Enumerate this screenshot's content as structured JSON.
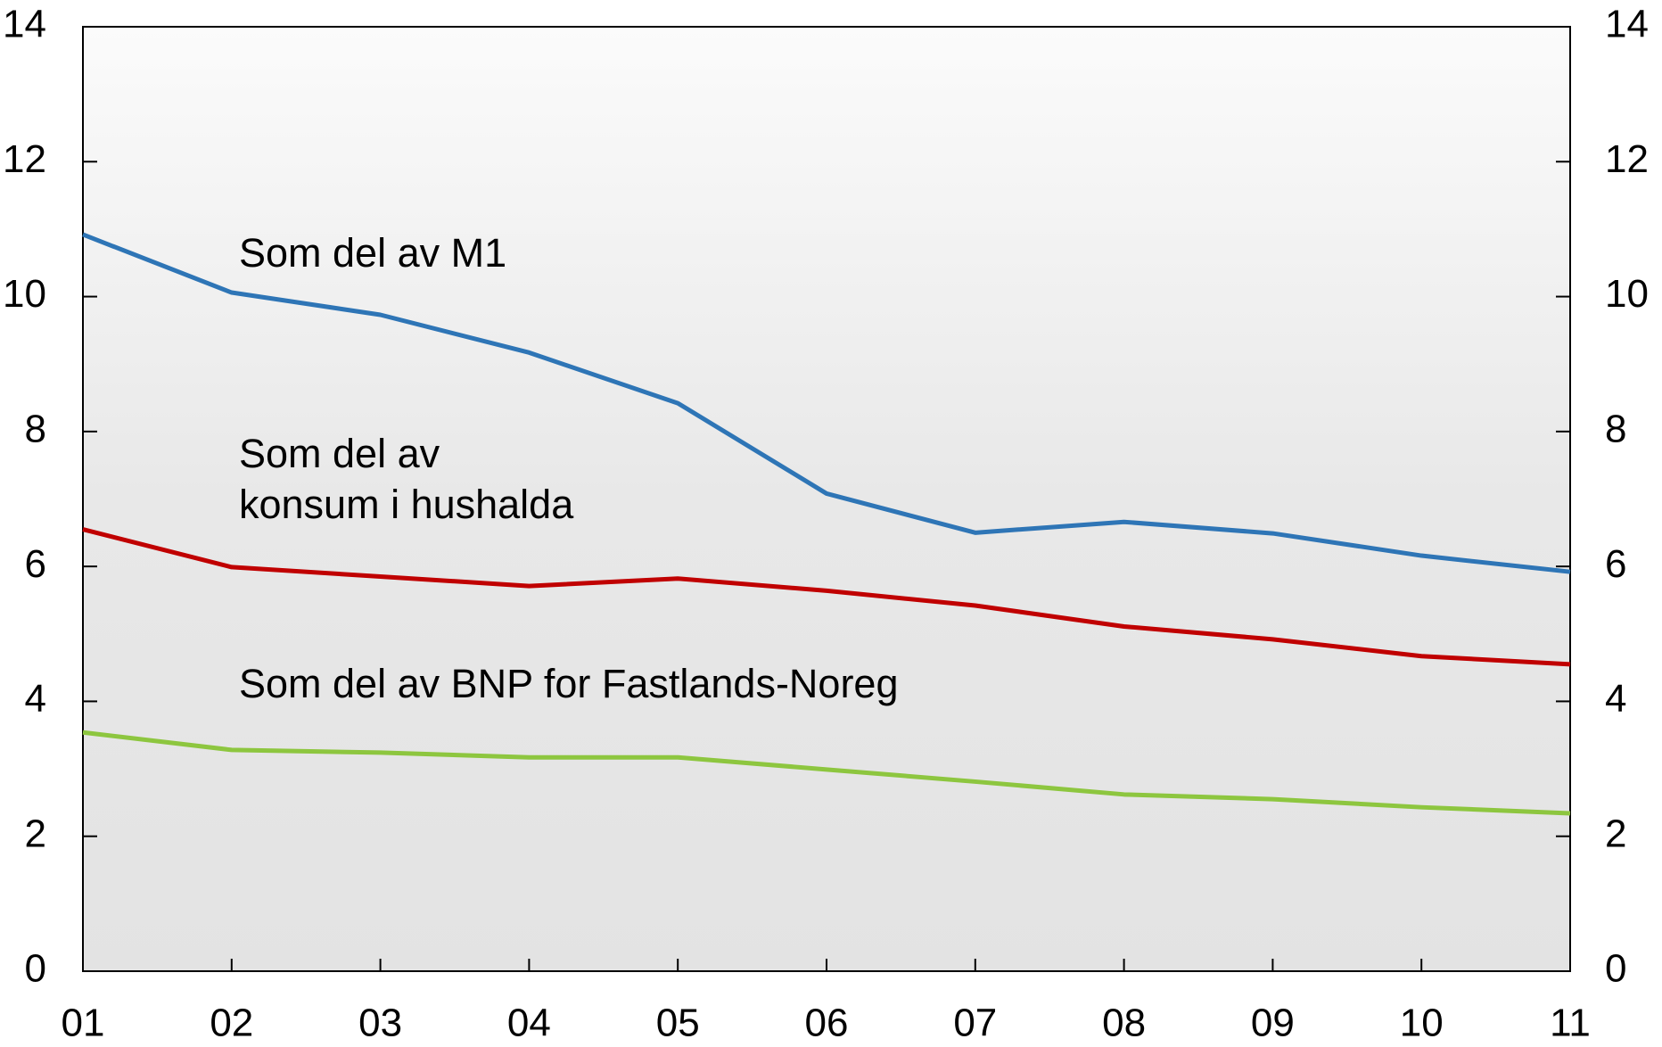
{
  "chart_data": {
    "type": "line",
    "categories": [
      "01",
      "02",
      "03",
      "04",
      "05",
      "06",
      "07",
      "08",
      "09",
      "10",
      "11"
    ],
    "series": [
      {
        "name": "Som del av M1",
        "color": "#2e75b6",
        "values": [
          10.92,
          10.06,
          9.73,
          9.17,
          8.42,
          7.08,
          6.5,
          6.66,
          6.49,
          6.16,
          5.92
        ]
      },
      {
        "name": "Som del av konsum i hushalda",
        "color": "#c00000",
        "values": [
          6.55,
          5.99,
          5.85,
          5.71,
          5.82,
          5.64,
          5.42,
          5.11,
          4.92,
          4.67,
          4.55
        ]
      },
      {
        "name": "Som del av BNP for Fastlands-Noreg",
        "color": "#8dc63f",
        "values": [
          3.54,
          3.28,
          3.24,
          3.17,
          3.17,
          2.99,
          2.81,
          2.62,
          2.55,
          2.43,
          2.34
        ]
      }
    ],
    "annotations": [
      [
        "Som del av M1"
      ],
      [
        "Som del av",
        "konsum i hushalda"
      ],
      [
        "Som del av BNP for Fastlands-Noreg"
      ]
    ],
    "ylim": [
      0,
      14
    ],
    "yticks": [
      0,
      2,
      4,
      6,
      8,
      10,
      12,
      14
    ],
    "y2lim": [
      0,
      14
    ],
    "y2ticks": [
      0,
      2,
      4,
      6,
      8,
      10,
      12,
      14
    ]
  }
}
